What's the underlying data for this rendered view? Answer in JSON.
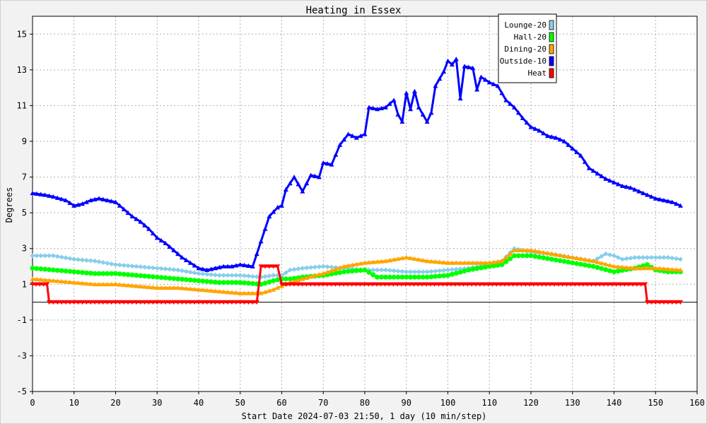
{
  "chart_data": {
    "type": "line",
    "title": "Heating in Essex",
    "xlabel": "Start Date 2024-07-03 21:50, 1 day (10 min/step)",
    "ylabel": "Degrees",
    "xlim": [
      0,
      160
    ],
    "ylim": [
      -5,
      16
    ],
    "xticks": [
      0,
      10,
      20,
      30,
      40,
      50,
      60,
      70,
      80,
      90,
      100,
      110,
      120,
      130,
      140,
      150,
      160
    ],
    "yticks": [
      -5,
      -3,
      -1,
      1,
      3,
      5,
      7,
      9,
      11,
      13,
      15
    ],
    "grid": true,
    "legend_position": "top-right",
    "series": [
      {
        "name": "Lounge-20",
        "color": "#87ceeb",
        "marker": "diamond",
        "points": [
          [
            0,
            2.6
          ],
          [
            5,
            2.6
          ],
          [
            10,
            2.4
          ],
          [
            15,
            2.3
          ],
          [
            20,
            2.1
          ],
          [
            25,
            2.0
          ],
          [
            30,
            1.9
          ],
          [
            35,
            1.8
          ],
          [
            40,
            1.6
          ],
          [
            45,
            1.5
          ],
          [
            50,
            1.5
          ],
          [
            55,
            1.4
          ],
          [
            58,
            1.5
          ],
          [
            60,
            1.5
          ],
          [
            62,
            1.8
          ],
          [
            65,
            1.9
          ],
          [
            70,
            2.0
          ],
          [
            75,
            1.9
          ],
          [
            80,
            1.8
          ],
          [
            85,
            1.8
          ],
          [
            90,
            1.7
          ],
          [
            95,
            1.7
          ],
          [
            100,
            1.8
          ],
          [
            105,
            1.9
          ],
          [
            110,
            2.1
          ],
          [
            113,
            2.3
          ],
          [
            116,
            3.0
          ],
          [
            120,
            2.8
          ],
          [
            125,
            2.7
          ],
          [
            130,
            2.5
          ],
          [
            135,
            2.3
          ],
          [
            138,
            2.7
          ],
          [
            140,
            2.6
          ],
          [
            142,
            2.4
          ],
          [
            145,
            2.5
          ],
          [
            150,
            2.5
          ],
          [
            153,
            2.5
          ],
          [
            156,
            2.4
          ]
        ]
      },
      {
        "name": "Hall-20",
        "color": "#00ff00",
        "marker": "circle",
        "points": [
          [
            0,
            1.9
          ],
          [
            5,
            1.8
          ],
          [
            10,
            1.7
          ],
          [
            15,
            1.6
          ],
          [
            20,
            1.6
          ],
          [
            25,
            1.5
          ],
          [
            30,
            1.4
          ],
          [
            35,
            1.3
          ],
          [
            40,
            1.2
          ],
          [
            45,
            1.1
          ],
          [
            50,
            1.1
          ],
          [
            55,
            1.0
          ],
          [
            58,
            1.2
          ],
          [
            60,
            1.3
          ],
          [
            62,
            1.3
          ],
          [
            65,
            1.4
          ],
          [
            70,
            1.5
          ],
          [
            75,
            1.7
          ],
          [
            80,
            1.8
          ],
          [
            83,
            1.4
          ],
          [
            85,
            1.4
          ],
          [
            90,
            1.4
          ],
          [
            95,
            1.4
          ],
          [
            100,
            1.5
          ],
          [
            105,
            1.8
          ],
          [
            110,
            2.0
          ],
          [
            113,
            2.1
          ],
          [
            116,
            2.6
          ],
          [
            120,
            2.6
          ],
          [
            125,
            2.4
          ],
          [
            130,
            2.2
          ],
          [
            135,
            2.0
          ],
          [
            140,
            1.7
          ],
          [
            145,
            1.9
          ],
          [
            148,
            2.1
          ],
          [
            150,
            1.8
          ],
          [
            153,
            1.7
          ],
          [
            156,
            1.7
          ]
        ]
      },
      {
        "name": "Dining-20",
        "color": "#ffa500",
        "marker": "triangle",
        "points": [
          [
            0,
            1.3
          ],
          [
            5,
            1.2
          ],
          [
            10,
            1.1
          ],
          [
            15,
            1.0
          ],
          [
            20,
            1.0
          ],
          [
            25,
            0.9
          ],
          [
            30,
            0.8
          ],
          [
            35,
            0.8
          ],
          [
            40,
            0.7
          ],
          [
            45,
            0.6
          ],
          [
            50,
            0.5
          ],
          [
            55,
            0.5
          ],
          [
            58,
            0.7
          ],
          [
            60,
            0.9
          ],
          [
            62,
            1.1
          ],
          [
            65,
            1.3
          ],
          [
            70,
            1.6
          ],
          [
            75,
            2.0
          ],
          [
            80,
            2.2
          ],
          [
            85,
            2.3
          ],
          [
            90,
            2.5
          ],
          [
            95,
            2.3
          ],
          [
            100,
            2.2
          ],
          [
            105,
            2.2
          ],
          [
            110,
            2.2
          ],
          [
            113,
            2.3
          ],
          [
            116,
            2.9
          ],
          [
            120,
            2.9
          ],
          [
            125,
            2.7
          ],
          [
            130,
            2.5
          ],
          [
            135,
            2.3
          ],
          [
            140,
            2.0
          ],
          [
            145,
            1.9
          ],
          [
            150,
            1.9
          ],
          [
            156,
            1.8
          ]
        ]
      },
      {
        "name": "Outside-10",
        "color": "#0000ff",
        "marker": "triangle",
        "points": [
          [
            0,
            6.1
          ],
          [
            3,
            6.0
          ],
          [
            5,
            5.9
          ],
          [
            8,
            5.7
          ],
          [
            10,
            5.4
          ],
          [
            12,
            5.5
          ],
          [
            14,
            5.7
          ],
          [
            16,
            5.8
          ],
          [
            18,
            5.7
          ],
          [
            20,
            5.6
          ],
          [
            22,
            5.2
          ],
          [
            24,
            4.8
          ],
          [
            26,
            4.5
          ],
          [
            28,
            4.1
          ],
          [
            30,
            3.6
          ],
          [
            32,
            3.3
          ],
          [
            34,
            2.9
          ],
          [
            36,
            2.5
          ],
          [
            38,
            2.2
          ],
          [
            40,
            1.9
          ],
          [
            42,
            1.8
          ],
          [
            44,
            1.9
          ],
          [
            46,
            2.0
          ],
          [
            48,
            2.0
          ],
          [
            50,
            2.1
          ],
          [
            53,
            2.0
          ],
          [
            55,
            3.4
          ],
          [
            57,
            4.8
          ],
          [
            59,
            5.3
          ],
          [
            60,
            5.4
          ],
          [
            61,
            6.3
          ],
          [
            63,
            7.0
          ],
          [
            64,
            6.6
          ],
          [
            65,
            6.2
          ],
          [
            67,
            7.1
          ],
          [
            69,
            7.0
          ],
          [
            70,
            7.8
          ],
          [
            72,
            7.7
          ],
          [
            74,
            8.8
          ],
          [
            76,
            9.4
          ],
          [
            78,
            9.2
          ],
          [
            80,
            9.4
          ],
          [
            81,
            10.9
          ],
          [
            83,
            10.8
          ],
          [
            85,
            10.9
          ],
          [
            87,
            11.3
          ],
          [
            88,
            10.5
          ],
          [
            89,
            10.1
          ],
          [
            90,
            11.7
          ],
          [
            91,
            10.8
          ],
          [
            92,
            11.8
          ],
          [
            93,
            10.9
          ],
          [
            95,
            10.1
          ],
          [
            96,
            10.6
          ],
          [
            97,
            12.1
          ],
          [
            99,
            12.9
          ],
          [
            100,
            13.5
          ],
          [
            101,
            13.3
          ],
          [
            102,
            13.6
          ],
          [
            103,
            11.4
          ],
          [
            104,
            13.2
          ],
          [
            106,
            13.1
          ],
          [
            107,
            11.9
          ],
          [
            108,
            12.6
          ],
          [
            110,
            12.3
          ],
          [
            112,
            12.1
          ],
          [
            114,
            11.3
          ],
          [
            116,
            10.9
          ],
          [
            118,
            10.3
          ],
          [
            120,
            9.8
          ],
          [
            122,
            9.6
          ],
          [
            124,
            9.3
          ],
          [
            126,
            9.2
          ],
          [
            128,
            9.0
          ],
          [
            130,
            8.6
          ],
          [
            132,
            8.2
          ],
          [
            134,
            7.5
          ],
          [
            136,
            7.2
          ],
          [
            138,
            6.9
          ],
          [
            140,
            6.7
          ],
          [
            142,
            6.5
          ],
          [
            144,
            6.4
          ],
          [
            146,
            6.2
          ],
          [
            148,
            6.0
          ],
          [
            150,
            5.8
          ],
          [
            152,
            5.7
          ],
          [
            154,
            5.6
          ],
          [
            156,
            5.4
          ]
        ]
      },
      {
        "name": "Heat",
        "color": "#ff0000",
        "marker": "triangle-down",
        "points": [
          [
            0,
            1.0
          ],
          [
            3.5,
            1.0
          ],
          [
            4,
            0.0
          ],
          [
            54,
            0.0
          ],
          [
            55,
            2.0
          ],
          [
            59,
            2.0
          ],
          [
            60,
            1.0
          ],
          [
            147.5,
            1.0
          ],
          [
            148,
            0.0
          ],
          [
            156,
            0.0
          ]
        ]
      }
    ]
  }
}
